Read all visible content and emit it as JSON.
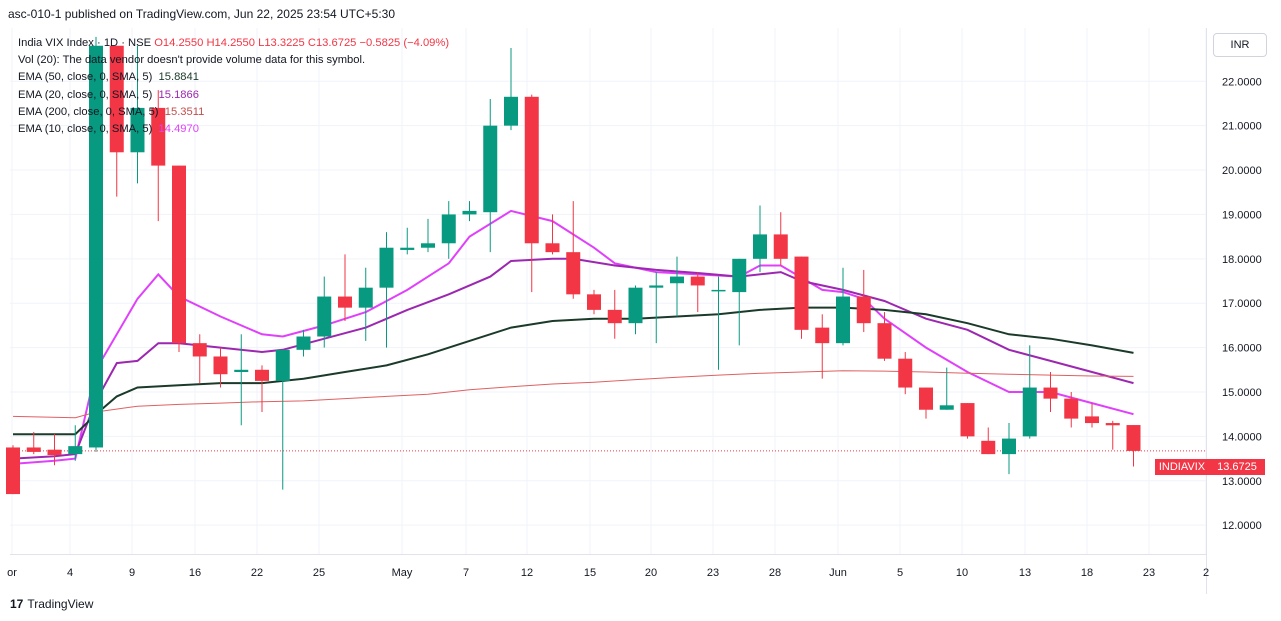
{
  "header": {
    "published": "asc-010-1 published on TradingView.com, Jun 22, 2025 23:54 UTC+5:30"
  },
  "legend": {
    "symbol": "India VIX Index · 1D · NSE",
    "o": "O14.2550",
    "h": "H14.2550",
    "l": "L13.3225",
    "c": "C13.6725",
    "chg": "−0.5825 (−4.09%)",
    "vol": "Vol (20): The data vendor doesn't provide volume data for this symbol.",
    "ema50_label": "EMA (50, close, 0, SMA, 5)",
    "ema50_value": "15.8841",
    "ema20_label": "EMA (20, close, 0, SMA, 5)",
    "ema20_value": "15.1866",
    "ema200_label": "EMA (200, close, 0, SMA, 5)",
    "ema200_value": "15.3511",
    "ema10_label": "EMA (10, close, 0, SMA, 5)",
    "ema10_value": "14.4970"
  },
  "currency": "INR",
  "price_tag": {
    "name": "INDIAVIX",
    "value": "13.6725"
  },
  "footer": {
    "logo": "17",
    "brand": "TradingView"
  },
  "colors": {
    "up": "#089981",
    "down": "#f23645",
    "ema50": "#1b3a2a",
    "ema20": "#9c27b0",
    "ema200": "#e06060",
    "ema10": "#e040fb"
  },
  "chart_data": {
    "type": "candlestick",
    "y_ticks": [
      "12.0000",
      "13.0000",
      "14.0000",
      "15.0000",
      "16.0000",
      "17.0000",
      "18.0000",
      "19.0000",
      "20.0000",
      "21.0000",
      "22.0000"
    ],
    "ylim": [
      11.35,
      23.2
    ],
    "x_ticks": [
      "or",
      "4",
      "9",
      "16",
      "22",
      "25",
      "May",
      "7",
      "12",
      "15",
      "20",
      "23",
      "28",
      "Jun",
      "5",
      "10",
      "13",
      "18",
      "23",
      "2"
    ],
    "candles": [
      {
        "o": 13.75,
        "h": 13.8,
        "l": 12.7,
        "c": 12.7
      },
      {
        "o": 13.75,
        "h": 14.1,
        "l": 13.6,
        "c": 13.65
      },
      {
        "o": 13.7,
        "h": 14.05,
        "l": 13.35,
        "c": 13.58
      },
      {
        "o": 13.6,
        "h": 14.25,
        "l": 13.45,
        "c": 13.78
      },
      {
        "o": 13.75,
        "h": 23.0,
        "l": 13.65,
        "c": 22.8
      },
      {
        "o": 22.8,
        "h": 22.8,
        "l": 19.4,
        "c": 20.4
      },
      {
        "o": 20.4,
        "h": 22.8,
        "l": 19.7,
        "c": 21.4
      },
      {
        "o": 21.4,
        "h": 21.8,
        "l": 18.85,
        "c": 20.1
      },
      {
        "o": 20.1,
        "h": 20.1,
        "l": 15.9,
        "c": 16.1
      },
      {
        "o": 16.1,
        "h": 16.3,
        "l": 15.2,
        "c": 15.8
      },
      {
        "o": 15.8,
        "h": 16.0,
        "l": 15.1,
        "c": 15.4
      },
      {
        "o": 15.45,
        "h": 16.3,
        "l": 14.25,
        "c": 15.5
      },
      {
        "o": 15.5,
        "h": 15.6,
        "l": 14.55,
        "c": 15.25
      },
      {
        "o": 15.25,
        "h": 15.9,
        "l": 12.8,
        "c": 15.95
      },
      {
        "o": 15.95,
        "h": 16.4,
        "l": 15.8,
        "c": 16.25
      },
      {
        "o": 16.25,
        "h": 17.6,
        "l": 16.0,
        "c": 17.15
      },
      {
        "o": 17.15,
        "h": 18.1,
        "l": 16.6,
        "c": 16.9
      },
      {
        "o": 16.9,
        "h": 17.8,
        "l": 16.15,
        "c": 17.35
      },
      {
        "o": 17.35,
        "h": 18.6,
        "l": 16.0,
        "c": 18.25
      },
      {
        "o": 18.2,
        "h": 18.7,
        "l": 18.1,
        "c": 18.25
      },
      {
        "o": 18.25,
        "h": 18.9,
        "l": 18.15,
        "c": 18.35
      },
      {
        "o": 18.35,
        "h": 19.3,
        "l": 18.0,
        "c": 19.0
      },
      {
        "o": 19.0,
        "h": 19.3,
        "l": 18.85,
        "c": 19.08
      },
      {
        "o": 19.05,
        "h": 21.6,
        "l": 18.15,
        "c": 21.0
      },
      {
        "o": 21.0,
        "h": 22.75,
        "l": 20.9,
        "c": 21.65
      },
      {
        "o": 21.65,
        "h": 21.7,
        "l": 17.25,
        "c": 18.35
      },
      {
        "o": 18.35,
        "h": 19.0,
        "l": 18.1,
        "c": 18.15
      },
      {
        "o": 18.15,
        "h": 19.3,
        "l": 17.1,
        "c": 17.2
      },
      {
        "o": 17.2,
        "h": 17.3,
        "l": 16.75,
        "c": 16.85
      },
      {
        "o": 16.85,
        "h": 17.3,
        "l": 16.2,
        "c": 16.55
      },
      {
        "o": 16.55,
        "h": 17.4,
        "l": 16.3,
        "c": 17.35
      },
      {
        "o": 17.35,
        "h": 17.7,
        "l": 16.1,
        "c": 17.4
      },
      {
        "o": 17.45,
        "h": 18.05,
        "l": 16.7,
        "c": 17.6
      },
      {
        "o": 17.6,
        "h": 17.7,
        "l": 16.8,
        "c": 17.4
      },
      {
        "o": 17.3,
        "h": 17.6,
        "l": 15.5,
        "c": 17.3
      },
      {
        "o": 17.25,
        "h": 18.0,
        "l": 16.05,
        "c": 18.0
      },
      {
        "o": 18.0,
        "h": 19.2,
        "l": 17.7,
        "c": 18.55
      },
      {
        "o": 18.55,
        "h": 19.05,
        "l": 17.85,
        "c": 18.0
      },
      {
        "o": 18.05,
        "h": 18.05,
        "l": 16.2,
        "c": 16.4
      },
      {
        "o": 16.45,
        "h": 16.75,
        "l": 15.3,
        "c": 16.1
      },
      {
        "o": 16.1,
        "h": 17.8,
        "l": 16.05,
        "c": 17.15
      },
      {
        "o": 17.15,
        "h": 17.75,
        "l": 16.35,
        "c": 16.55
      },
      {
        "o": 16.55,
        "h": 16.8,
        "l": 15.7,
        "c": 15.75
      },
      {
        "o": 15.75,
        "h": 15.9,
        "l": 14.95,
        "c": 15.1
      },
      {
        "o": 15.1,
        "h": 15.1,
        "l": 14.4,
        "c": 14.6
      },
      {
        "o": 14.6,
        "h": 15.55,
        "l": 14.6,
        "c": 14.7
      },
      {
        "o": 14.75,
        "h": 14.75,
        "l": 13.95,
        "c": 14.0
      },
      {
        "o": 13.9,
        "h": 14.2,
        "l": 13.6,
        "c": 13.6
      },
      {
        "o": 13.6,
        "h": 14.3,
        "l": 13.15,
        "c": 13.95
      },
      {
        "o": 14.0,
        "h": 16.05,
        "l": 13.95,
        "c": 15.1
      },
      {
        "o": 15.1,
        "h": 15.45,
        "l": 14.55,
        "c": 14.85
      },
      {
        "o": 14.85,
        "h": 15.0,
        "l": 14.2,
        "c": 14.4
      },
      {
        "o": 14.45,
        "h": 14.75,
        "l": 14.2,
        "c": 14.3
      },
      {
        "o": 14.3,
        "h": 14.35,
        "l": 13.7,
        "c": 14.25
      },
      {
        "o": 14.255,
        "h": 14.255,
        "l": 13.3225,
        "c": 13.6725
      }
    ],
    "series": [
      {
        "name": "EMA (10, close, 0, SMA, 5)",
        "color": "#e040fb",
        "points": [
          [
            0,
            13.38
          ],
          [
            2,
            13.45
          ],
          [
            3,
            13.5
          ],
          [
            4,
            15.5
          ],
          [
            6,
            17.1
          ],
          [
            7,
            17.65
          ],
          [
            8,
            17.15
          ],
          [
            10,
            16.7
          ],
          [
            12,
            16.3
          ],
          [
            13,
            16.25
          ],
          [
            15,
            16.5
          ],
          [
            17,
            16.8
          ],
          [
            19,
            17.3
          ],
          [
            21,
            17.9
          ],
          [
            22,
            18.5
          ],
          [
            24,
            19.08
          ],
          [
            26,
            18.85
          ],
          [
            28,
            18.25
          ],
          [
            29,
            17.9
          ],
          [
            31,
            17.7
          ],
          [
            33,
            17.65
          ],
          [
            35,
            17.6
          ],
          [
            36,
            17.85
          ],
          [
            37,
            17.85
          ],
          [
            39,
            17.3
          ],
          [
            40,
            17.25
          ],
          [
            41,
            17.1
          ],
          [
            42,
            16.65
          ],
          [
            44,
            16.0
          ],
          [
            46,
            15.45
          ],
          [
            48,
            15.0
          ],
          [
            50,
            15.0
          ],
          [
            52,
            14.75
          ],
          [
            54,
            14.5
          ]
        ]
      },
      {
        "name": "EMA (20, close, 0, SMA, 5)",
        "color": "#9c27b0",
        "points": [
          [
            0,
            13.5
          ],
          [
            2,
            13.55
          ],
          [
            3,
            13.6
          ],
          [
            4,
            14.8
          ],
          [
            5,
            15.65
          ],
          [
            6,
            15.7
          ],
          [
            7,
            16.1
          ],
          [
            8,
            16.1
          ],
          [
            10,
            16.0
          ],
          [
            12,
            15.9
          ],
          [
            13,
            15.95
          ],
          [
            15,
            16.2
          ],
          [
            17,
            16.45
          ],
          [
            19,
            16.85
          ],
          [
            21,
            17.2
          ],
          [
            23,
            17.6
          ],
          [
            24,
            17.95
          ],
          [
            26,
            18.0
          ],
          [
            27,
            18.0
          ],
          [
            29,
            17.85
          ],
          [
            31,
            17.75
          ],
          [
            33,
            17.68
          ],
          [
            35,
            17.6
          ],
          [
            37,
            17.7
          ],
          [
            38,
            17.5
          ],
          [
            40,
            17.3
          ],
          [
            42,
            17.05
          ],
          [
            44,
            16.65
          ],
          [
            46,
            16.4
          ],
          [
            48,
            15.95
          ],
          [
            50,
            15.7
          ],
          [
            52,
            15.45
          ],
          [
            54,
            15.2
          ]
        ]
      },
      {
        "name": "EMA (50, close, 0, SMA, 5)",
        "color": "#1b3a2a",
        "points": [
          [
            0,
            14.05
          ],
          [
            3,
            14.05
          ],
          [
            4,
            14.5
          ],
          [
            5,
            14.9
          ],
          [
            6,
            15.1
          ],
          [
            8,
            15.15
          ],
          [
            10,
            15.2
          ],
          [
            12,
            15.2
          ],
          [
            14,
            15.3
          ],
          [
            16,
            15.45
          ],
          [
            18,
            15.6
          ],
          [
            20,
            15.85
          ],
          [
            22,
            16.15
          ],
          [
            24,
            16.45
          ],
          [
            26,
            16.6
          ],
          [
            28,
            16.65
          ],
          [
            30,
            16.65
          ],
          [
            32,
            16.7
          ],
          [
            34,
            16.75
          ],
          [
            36,
            16.85
          ],
          [
            38,
            16.9
          ],
          [
            40,
            16.9
          ],
          [
            42,
            16.85
          ],
          [
            44,
            16.75
          ],
          [
            46,
            16.55
          ],
          [
            48,
            16.3
          ],
          [
            50,
            16.2
          ],
          [
            52,
            16.05
          ],
          [
            54,
            15.88
          ]
        ]
      },
      {
        "name": "EMA (200, close, 0, SMA, 5)",
        "color": "#e06060",
        "points": [
          [
            0,
            14.45
          ],
          [
            3,
            14.42
          ],
          [
            4,
            14.55
          ],
          [
            6,
            14.68
          ],
          [
            8,
            14.72
          ],
          [
            10,
            14.75
          ],
          [
            12,
            14.78
          ],
          [
            14,
            14.8
          ],
          [
            16,
            14.85
          ],
          [
            18,
            14.9
          ],
          [
            20,
            14.95
          ],
          [
            22,
            15.05
          ],
          [
            24,
            15.12
          ],
          [
            26,
            15.18
          ],
          [
            28,
            15.22
          ],
          [
            30,
            15.28
          ],
          [
            32,
            15.33
          ],
          [
            34,
            15.38
          ],
          [
            36,
            15.42
          ],
          [
            38,
            15.45
          ],
          [
            40,
            15.48
          ],
          [
            42,
            15.47
          ],
          [
            44,
            15.45
          ],
          [
            46,
            15.42
          ],
          [
            48,
            15.4
          ],
          [
            50,
            15.38
          ],
          [
            52,
            15.36
          ],
          [
            54,
            15.35
          ]
        ]
      }
    ],
    "last_price": 13.6725,
    "grid": true
  }
}
